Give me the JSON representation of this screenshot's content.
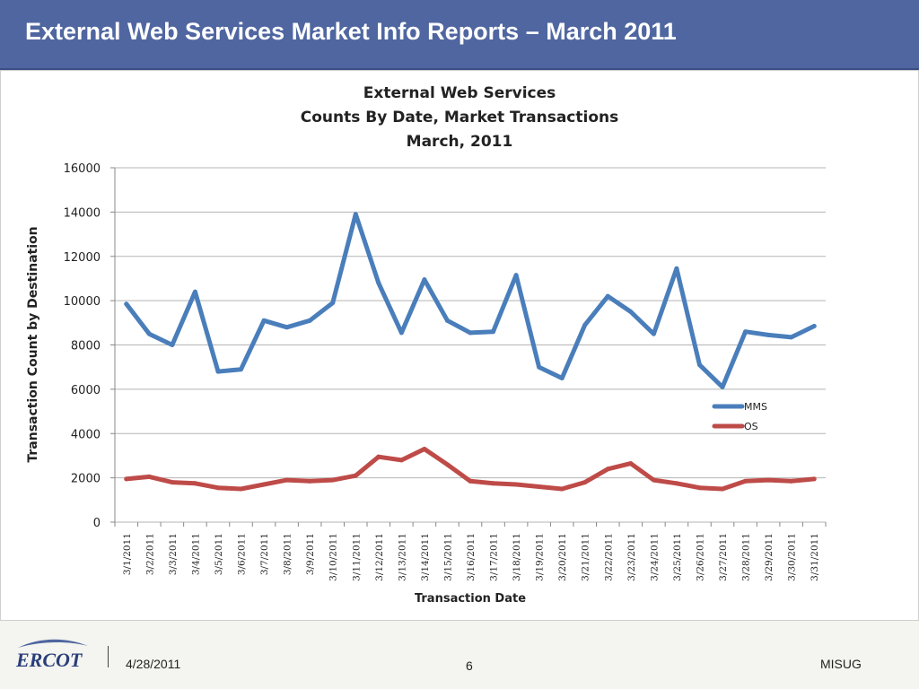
{
  "header": {
    "title": "External Web Services Market Info Reports – March 2011"
  },
  "footer": {
    "logo_text": "ERCOT",
    "date": "4/28/2011",
    "page_number": "6",
    "org": "MISUG"
  },
  "colors": {
    "header_bg": "#4f66a0",
    "mms": "#4a7ebb",
    "os": "#be4b48"
  },
  "chart_data": {
    "type": "line",
    "title_lines": [
      "External Web Services",
      "Counts By Date, Market Transactions",
      "March, 2011"
    ],
    "xlabel": "Transaction Date",
    "ylabel": "Transaction Count by Destination",
    "ylim": [
      0,
      16000
    ],
    "yticks": [
      0,
      2000,
      4000,
      6000,
      8000,
      10000,
      12000,
      14000,
      16000
    ],
    "grid": true,
    "legend": "right",
    "categories": [
      "3/1/2011",
      "3/2/2011",
      "3/3/2011",
      "3/4/2011",
      "3/5/2011",
      "3/6/2011",
      "3/7/2011",
      "3/8/2011",
      "3/9/2011",
      "3/10/2011",
      "3/11/2011",
      "3/12/2011",
      "3/13/2011",
      "3/14/2011",
      "3/15/2011",
      "3/16/2011",
      "3/17/2011",
      "3/18/2011",
      "3/19/2011",
      "3/20/2011",
      "3/21/2011",
      "3/22/2011",
      "3/23/2011",
      "3/24/2011",
      "3/25/2011",
      "3/26/2011",
      "3/27/2011",
      "3/28/2011",
      "3/29/2011",
      "3/30/2011",
      "3/31/2011"
    ],
    "series": [
      {
        "name": "MMS",
        "color": "#4a7ebb",
        "values": [
          9850,
          8500,
          8000,
          10400,
          6800,
          6900,
          9100,
          8800,
          9100,
          9900,
          13900,
          10800,
          8550,
          10950,
          9100,
          8550,
          8600,
          11150,
          7000,
          6500,
          8900,
          10200,
          9500,
          8500,
          11450,
          7100,
          6100,
          8600,
          8450,
          8350,
          8850
        ]
      },
      {
        "name": "OS",
        "color": "#be4b48",
        "values": [
          1950,
          2050,
          1800,
          1750,
          1550,
          1500,
          1700,
          1900,
          1850,
          1900,
          2100,
          2950,
          2800,
          3300,
          2600,
          1850,
          1750,
          1700,
          1600,
          1500,
          1800,
          2400,
          2650,
          1900,
          1750,
          1550,
          1500,
          1850,
          1900,
          1850,
          1950
        ]
      }
    ]
  }
}
